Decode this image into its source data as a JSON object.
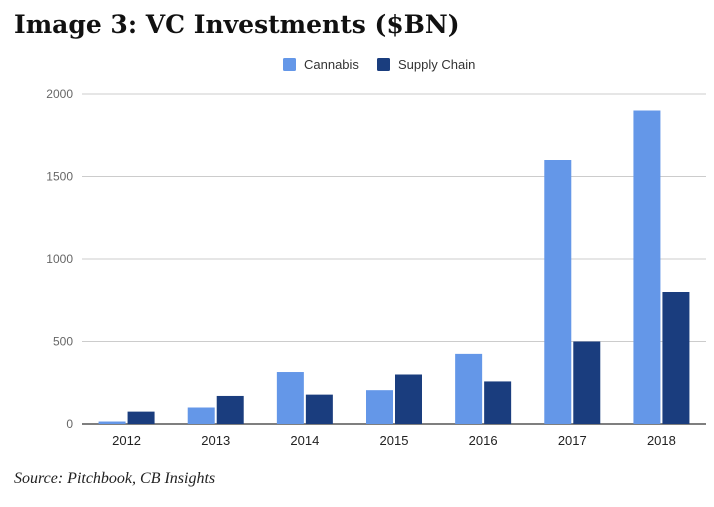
{
  "title": "Image 3: VC Investments ($BN)",
  "source": "Source: Pitchbook, CB Insights",
  "chart_data": {
    "type": "bar",
    "categories": [
      "2012",
      "2013",
      "2014",
      "2015",
      "2016",
      "2017",
      "2018"
    ],
    "series": [
      {
        "name": "Cannabis",
        "color": "#6497e8",
        "values": [
          15,
          100,
          315,
          205,
          425,
          1600,
          1900
        ]
      },
      {
        "name": "Supply Chain",
        "color": "#1a3d7e",
        "values": [
          75,
          170,
          178,
          300,
          258,
          500,
          800
        ]
      }
    ],
    "yticks": [
      0,
      500,
      1000,
      1500,
      2000
    ],
    "ylim": [
      0,
      2000
    ],
    "grid": true,
    "legend_position": "top-center",
    "xlabel": "",
    "ylabel": ""
  }
}
